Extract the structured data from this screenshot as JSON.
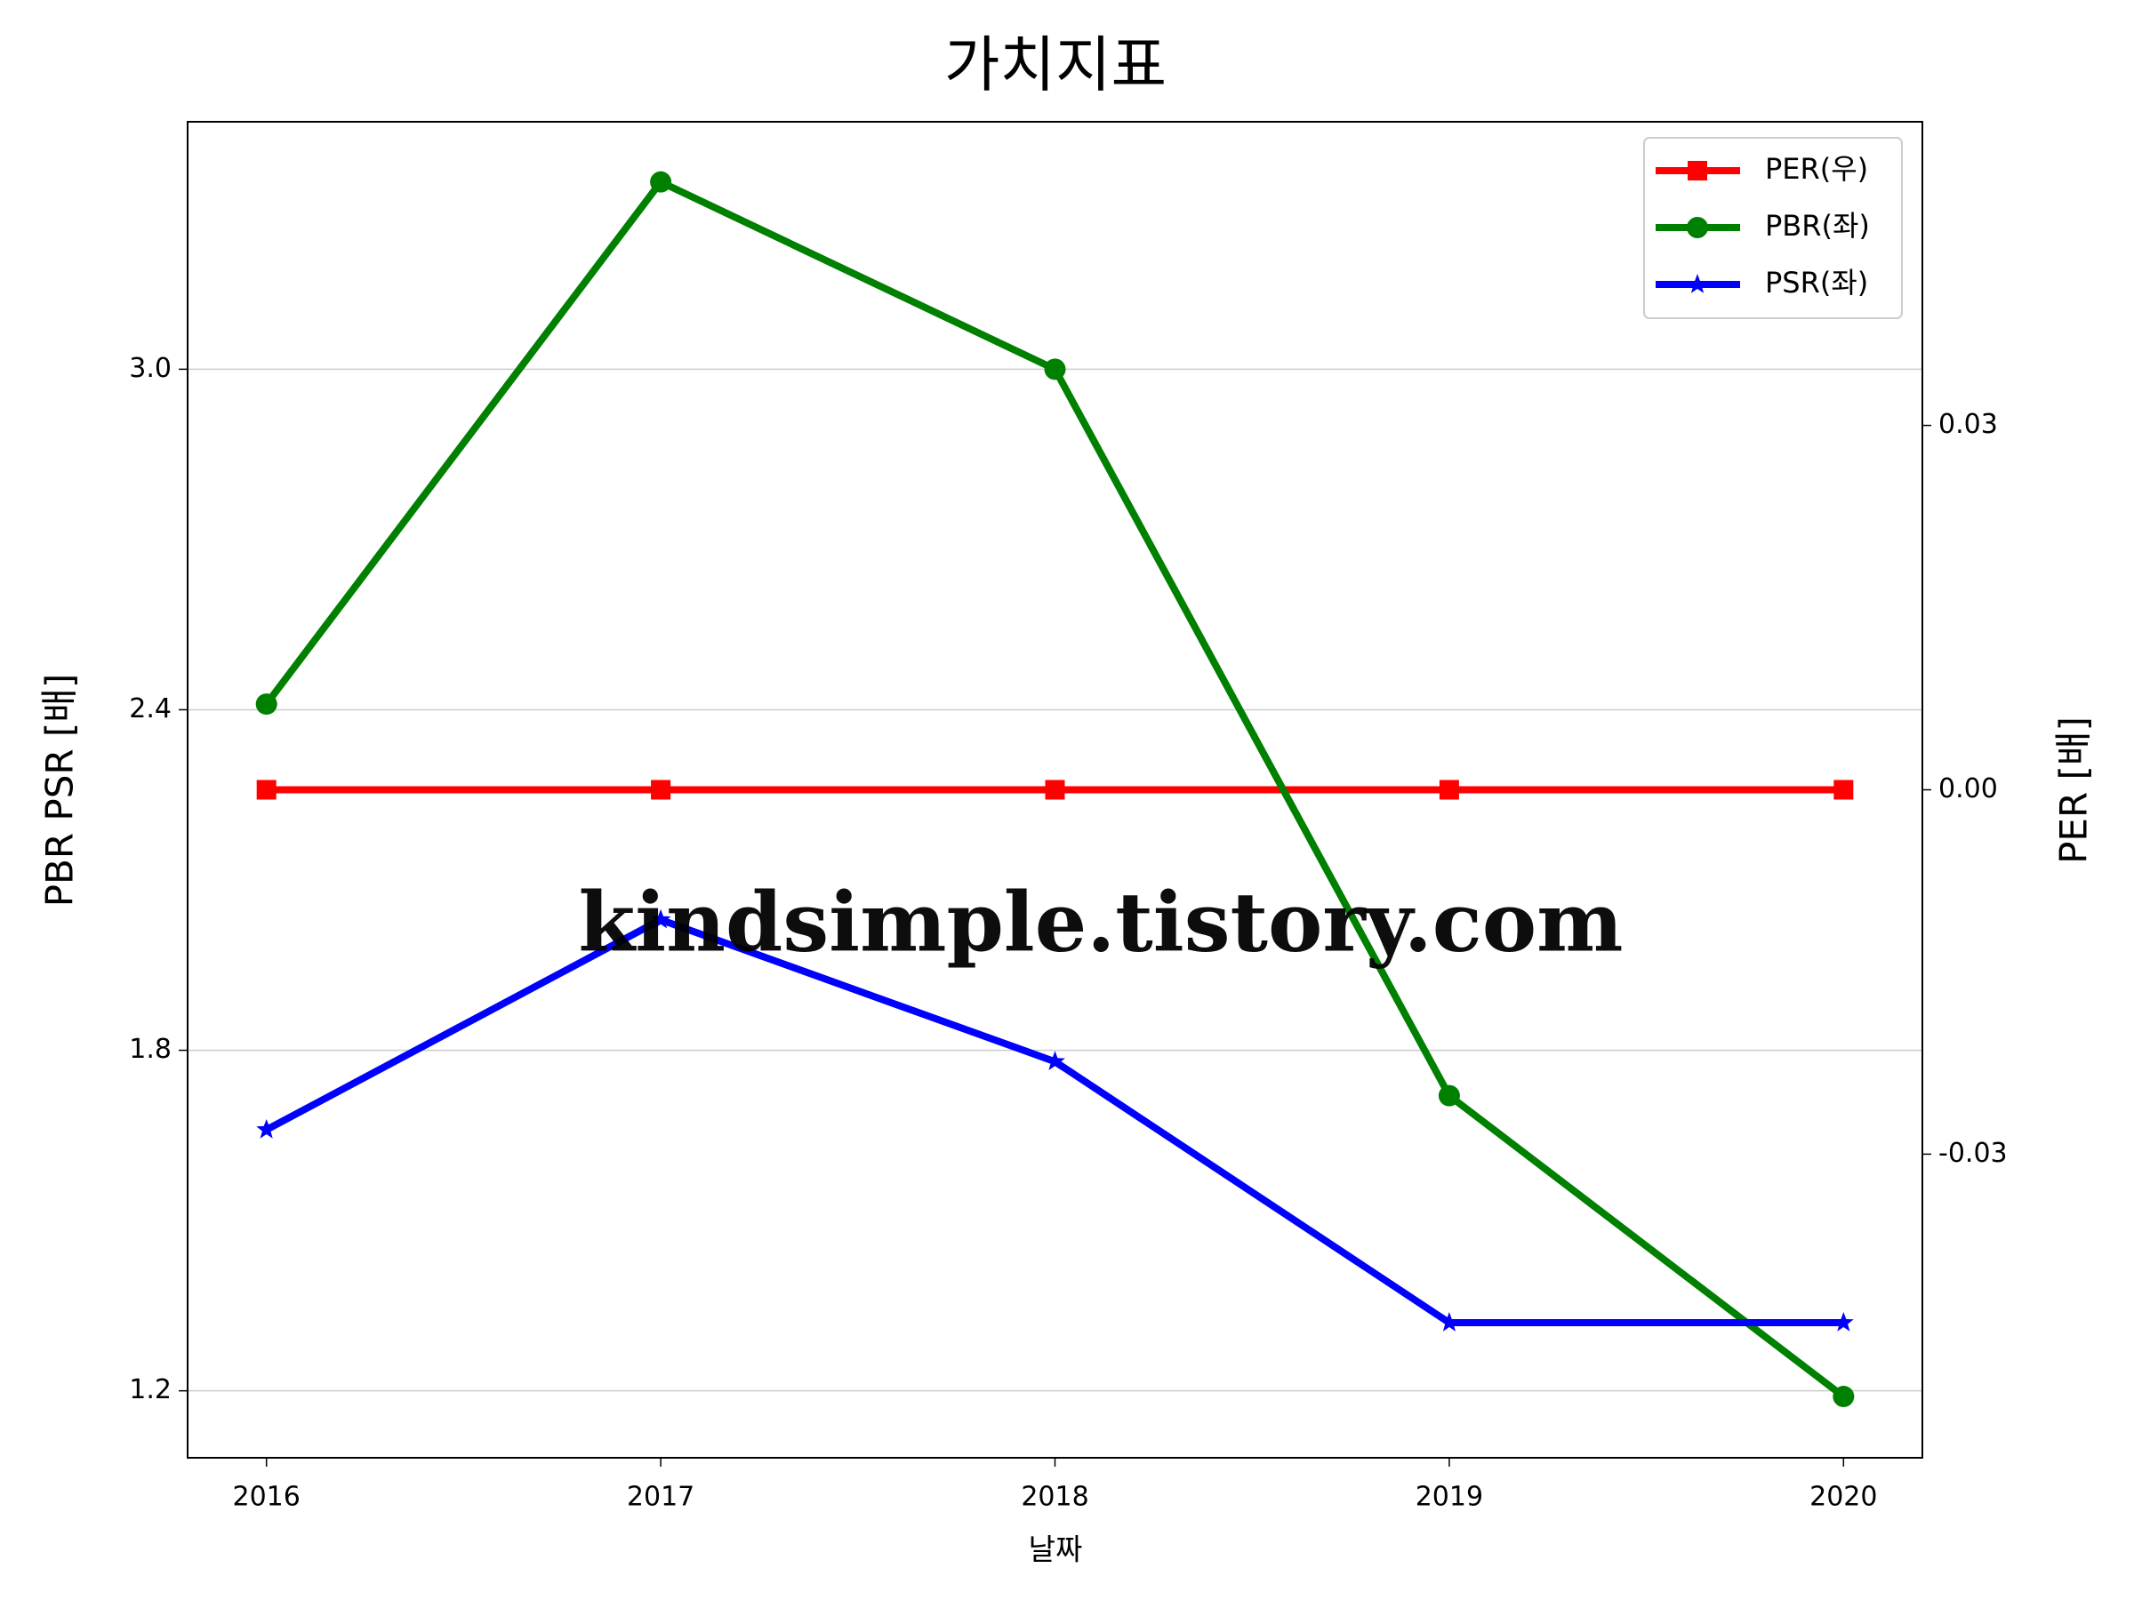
{
  "chart_data": {
    "type": "line",
    "title": "가치지표",
    "x_label": "날짜",
    "y_label": "PBR PSR [배]",
    "y2_label": "PER [배]",
    "y_label_color": "#008000",
    "y2_label_color": "#ff0000",
    "x": [
      2016,
      2017,
      2018,
      2019,
      2020
    ],
    "xlim": [
      2015.8,
      2020.2
    ],
    "xticks": [
      2016,
      2017,
      2018,
      2019,
      2020
    ],
    "ylim": [
      1.082,
      3.436
    ],
    "yticks": [
      {
        "value": 1.2,
        "label": "1.2"
      },
      1.8,
      2.4,
      {
        "value": 3,
        "label": "3.0"
      }
    ],
    "y2lim": [
      -0.055,
      0.055
    ],
    "y2ticks": [
      -0.03,
      {
        "value": 0,
        "label": "0.00"
      },
      0.03
    ],
    "grid": true,
    "legend": "upper right",
    "watermark": "kindsimple.tistory.com",
    "series": [
      {
        "name": "PER(우)",
        "color": "#ff0000",
        "marker": "square",
        "axis": "y2",
        "values": [
          0,
          0,
          0,
          0,
          0
        ]
      },
      {
        "name": "PBR(좌)",
        "color": "#008000",
        "marker": "circle",
        "values": [
          2.41,
          3.33,
          3.0,
          1.72,
          1.19
        ]
      },
      {
        "name": "PSR(좌)",
        "color": "#0000ff",
        "marker": "star",
        "values": [
          1.66,
          2.03,
          1.78,
          1.32,
          1.32
        ]
      }
    ]
  }
}
